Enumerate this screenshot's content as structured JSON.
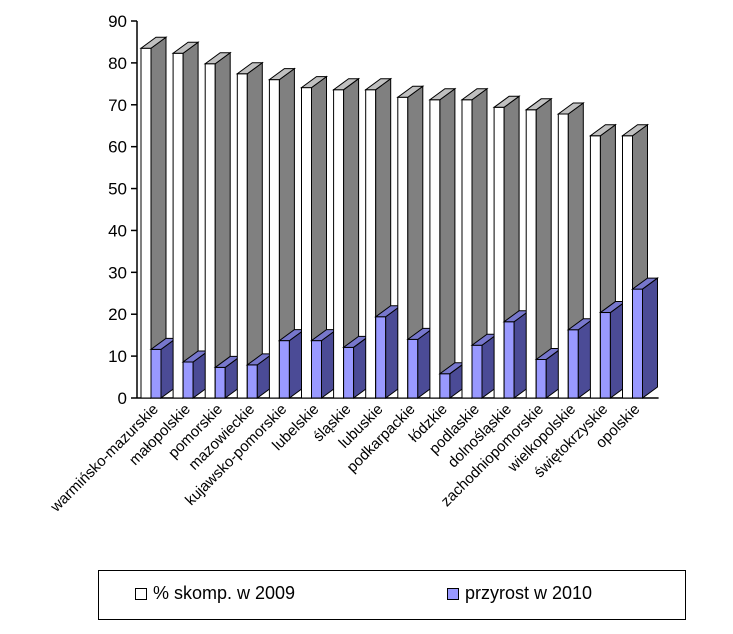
{
  "chart_data": {
    "type": "bar",
    "style": "3d-stacked",
    "categories": [
      "warmińsko-mazurskie",
      "małopolskie",
      "pomorskie",
      "mazowieckie",
      "kujawsko-pomorskie",
      "lubelskie",
      "śląskie",
      "lubuskie",
      "podkarpackie",
      "łódzkie",
      "podlaskie",
      "dolnośląskie",
      "zachodniopomorskie",
      "wielkopolskie",
      "świętokrzyskie",
      "opolskie"
    ],
    "series": [
      {
        "name": "% skomp. w  2009",
        "color": "#808080",
        "front_color": "#ffffff",
        "values": [
          83.5,
          82.3,
          79.8,
          77.4,
          76.0,
          74.1,
          73.6,
          73.6,
          71.8,
          71.2,
          71.2,
          69.4,
          68.8,
          67.8,
          62.6,
          62.6
        ]
      },
      {
        "name": "przyrost w  2010",
        "color": "#9999ff",
        "front_color": "#9999ff",
        "values": [
          11.6,
          8.6,
          7.3,
          7.9,
          13.7,
          13.7,
          12.1,
          19.4,
          14.0,
          5.8,
          12.6,
          18.2,
          9.2,
          16.3,
          20.4,
          26.0
        ]
      }
    ],
    "y_ticks": [
      "0",
      "10",
      "20",
      "30",
      "40",
      "50",
      "60",
      "70",
      "80",
      "90"
    ],
    "ylim": [
      0,
      90
    ],
    "legend_position": "bottom"
  }
}
